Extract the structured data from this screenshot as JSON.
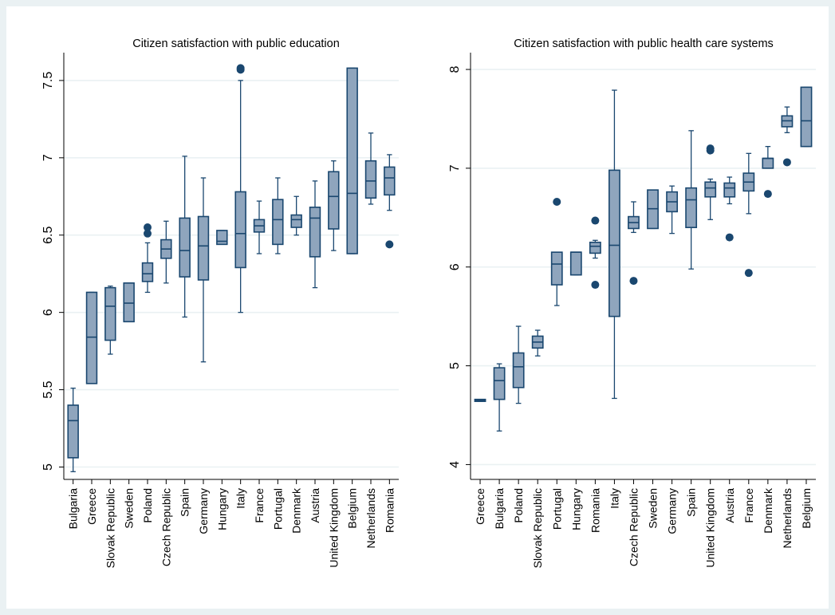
{
  "chart_data": [
    {
      "type": "box",
      "title": "Citizen satisfaction with public education",
      "ylim": [
        4.92,
        7.68
      ],
      "yticks": [
        5,
        5.5,
        6,
        6.5,
        7,
        7.5
      ],
      "ytick_labels": [
        "5",
        "5.5",
        "6",
        "6.5",
        "7",
        "7.5"
      ],
      "grid": true,
      "colors": {
        "box_fill": "#8fa5bd",
        "box_stroke": "#1a476f",
        "outlier": "#1a476f"
      },
      "categories": [
        "Bulgaria",
        "Greece",
        "Slovak Republic",
        "Sweden",
        "Poland",
        "Czech Republic",
        "Spain",
        "Germany",
        "Hungary",
        "Italy",
        "France",
        "Portugal",
        "Denmark",
        "Austria",
        "United Kingdom",
        "Belgium",
        "Netherlands",
        "Romania"
      ],
      "boxes": [
        {
          "min": 4.97,
          "q1": 5.06,
          "median": 5.3,
          "q3": 5.4,
          "max": 5.51,
          "outliers": []
        },
        {
          "min": 5.54,
          "q1": 5.54,
          "median": 5.84,
          "q3": 6.13,
          "max": 6.13,
          "outliers": []
        },
        {
          "min": 5.73,
          "q1": 5.82,
          "median": 6.04,
          "q3": 6.16,
          "max": 6.17,
          "outliers": []
        },
        {
          "min": 5.94,
          "q1": 5.94,
          "median": 6.06,
          "q3": 6.19,
          "max": 6.19,
          "outliers": []
        },
        {
          "min": 6.13,
          "q1": 6.2,
          "median": 6.25,
          "q3": 6.32,
          "max": 6.45,
          "outliers": [
            6.51,
            6.55
          ]
        },
        {
          "min": 6.19,
          "q1": 6.35,
          "median": 6.41,
          "q3": 6.47,
          "max": 6.59,
          "outliers": []
        },
        {
          "min": 5.97,
          "q1": 6.23,
          "median": 6.4,
          "q3": 6.61,
          "max": 7.01,
          "outliers": []
        },
        {
          "min": 5.68,
          "q1": 6.21,
          "median": 6.43,
          "q3": 6.62,
          "max": 6.87,
          "outliers": []
        },
        {
          "min": 6.44,
          "q1": 6.44,
          "median": 6.46,
          "q3": 6.53,
          "max": 6.53,
          "outliers": []
        },
        {
          "min": 6.0,
          "q1": 6.29,
          "median": 6.51,
          "q3": 6.78,
          "max": 7.5,
          "outliers": [
            7.57,
            7.58
          ]
        },
        {
          "min": 6.38,
          "q1": 6.52,
          "median": 6.56,
          "q3": 6.6,
          "max": 6.72,
          "outliers": []
        },
        {
          "min": 6.38,
          "q1": 6.44,
          "median": 6.6,
          "q3": 6.73,
          "max": 6.87,
          "outliers": []
        },
        {
          "min": 6.5,
          "q1": 6.55,
          "median": 6.6,
          "q3": 6.63,
          "max": 6.75,
          "outliers": []
        },
        {
          "min": 6.16,
          "q1": 6.36,
          "median": 6.61,
          "q3": 6.68,
          "max": 6.85,
          "outliers": []
        },
        {
          "min": 6.4,
          "q1": 6.54,
          "median": 6.75,
          "q3": 6.91,
          "max": 6.98,
          "outliers": []
        },
        {
          "min": 6.38,
          "q1": 6.38,
          "median": 6.77,
          "q3": 7.58,
          "max": 7.58,
          "outliers": []
        },
        {
          "min": 6.7,
          "q1": 6.74,
          "median": 6.85,
          "q3": 6.98,
          "max": 7.16,
          "outliers": []
        },
        {
          "min": 6.66,
          "q1": 6.76,
          "median": 6.87,
          "q3": 6.94,
          "max": 7.02,
          "outliers": [
            6.44
          ]
        }
      ]
    },
    {
      "type": "box",
      "title": "Citizen satisfaction with public health care systems",
      "ylim": [
        3.85,
        8.17
      ],
      "yticks": [
        4,
        5,
        6,
        7,
        8
      ],
      "ytick_labels": [
        "4",
        "5",
        "6",
        "7",
        "8"
      ],
      "grid": true,
      "colors": {
        "box_fill": "#8fa5bd",
        "box_stroke": "#1a476f",
        "outlier": "#1a476f"
      },
      "categories": [
        "Greece",
        "Bulgaria",
        "Poland",
        "Slovak Republic",
        "Portugal",
        "Hungary",
        "Romania",
        "Italy",
        "Czech Republic",
        "Sweden",
        "Germany",
        "Spain",
        "United Kingdom",
        "Austria",
        "France",
        "Denmark",
        "Netherlands",
        "Belgium"
      ],
      "boxes": [
        {
          "min": 4.64,
          "q1": 4.64,
          "median": 4.65,
          "q3": 4.66,
          "max": 4.66,
          "outliers": []
        },
        {
          "min": 4.34,
          "q1": 4.66,
          "median": 4.85,
          "q3": 4.98,
          "max": 5.02,
          "outliers": []
        },
        {
          "min": 4.62,
          "q1": 4.78,
          "median": 4.99,
          "q3": 5.13,
          "max": 5.4,
          "outliers": []
        },
        {
          "min": 5.1,
          "q1": 5.18,
          "median": 5.24,
          "q3": 5.3,
          "max": 5.36,
          "outliers": []
        },
        {
          "min": 5.61,
          "q1": 5.82,
          "median": 6.03,
          "q3": 6.15,
          "max": 6.15,
          "outliers": [
            6.66
          ]
        },
        {
          "min": 5.92,
          "q1": 5.92,
          "median": 6.15,
          "q3": 6.15,
          "max": 6.15,
          "outliers": []
        },
        {
          "min": 6.09,
          "q1": 6.14,
          "median": 6.21,
          "q3": 6.25,
          "max": 6.27,
          "outliers": [
            5.82,
            6.47
          ]
        },
        {
          "min": 4.67,
          "q1": 5.5,
          "median": 6.22,
          "q3": 6.98,
          "max": 7.79,
          "outliers": []
        },
        {
          "min": 6.35,
          "q1": 6.39,
          "median": 6.45,
          "q3": 6.51,
          "max": 6.66,
          "outliers": [
            5.86
          ]
        },
        {
          "min": 6.39,
          "q1": 6.39,
          "median": 6.59,
          "q3": 6.78,
          "max": 6.78,
          "outliers": []
        },
        {
          "min": 6.34,
          "q1": 6.56,
          "median": 6.66,
          "q3": 6.76,
          "max": 6.82,
          "outliers": []
        },
        {
          "min": 5.98,
          "q1": 6.4,
          "median": 6.68,
          "q3": 6.8,
          "max": 7.38,
          "outliers": []
        },
        {
          "min": 6.48,
          "q1": 6.71,
          "median": 6.8,
          "q3": 6.86,
          "max": 6.89,
          "outliers": [
            7.18,
            7.2
          ]
        },
        {
          "min": 6.64,
          "q1": 6.71,
          "median": 6.8,
          "q3": 6.85,
          "max": 6.91,
          "outliers": [
            6.3
          ]
        },
        {
          "min": 6.54,
          "q1": 6.77,
          "median": 6.86,
          "q3": 6.95,
          "max": 7.15,
          "outliers": [
            5.94
          ]
        },
        {
          "min": 7.0,
          "q1": 7.0,
          "median": 7.1,
          "q3": 7.1,
          "max": 7.22,
          "outliers": [
            6.74
          ]
        },
        {
          "min": 7.36,
          "q1": 7.42,
          "median": 7.48,
          "q3": 7.53,
          "max": 7.62,
          "outliers": [
            7.06
          ]
        },
        {
          "min": 7.22,
          "q1": 7.22,
          "median": 7.48,
          "q3": 7.82,
          "max": 7.82,
          "outliers": []
        }
      ]
    }
  ]
}
